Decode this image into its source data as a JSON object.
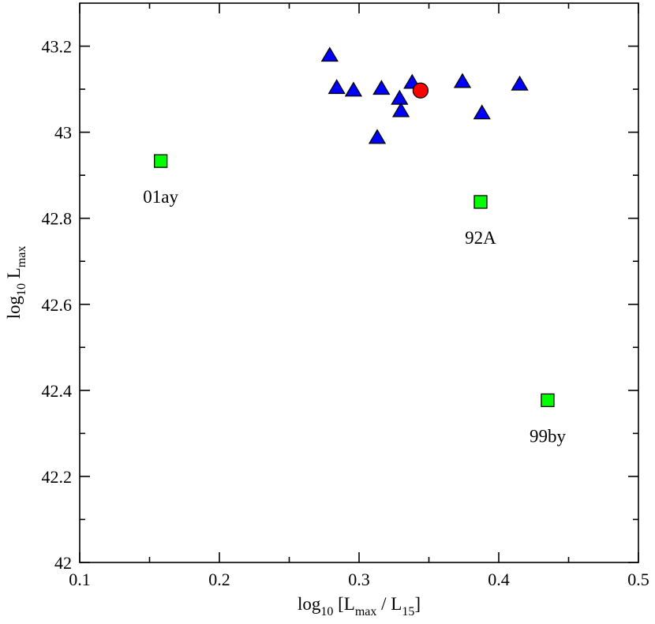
{
  "chart_data": {
    "type": "scatter",
    "title": "",
    "xlabel": {
      "base": "log",
      "base_sub": "10",
      "open": " [L",
      "sub1": "max",
      "mid": " / L",
      "sub2": "15",
      "close": "]"
    },
    "ylabel": {
      "base": "log",
      "base_sub": "10",
      "mid": " L",
      "sub1": "max"
    },
    "xlim": [
      0.1,
      0.5
    ],
    "ylim": [
      42.0,
      43.3
    ],
    "x_ticks": [
      0.1,
      0.2,
      0.3,
      0.4,
      0.5
    ],
    "x_tick_labels": [
      "0.1",
      "0.2",
      "0.3",
      "0.4",
      "0.5"
    ],
    "y_ticks": [
      42.0,
      42.2,
      42.4,
      42.6,
      42.8,
      43.0,
      43.2
    ],
    "y_tick_labels": [
      "42",
      "42.2",
      "42.4",
      "42.6",
      "42.8",
      "43",
      "43.2"
    ],
    "grid": false,
    "series": [
      {
        "marker": "triangle",
        "color": "#0000ff",
        "points": [
          {
            "x": 0.279,
            "y": 43.178
          },
          {
            "x": 0.284,
            "y": 43.103
          },
          {
            "x": 0.296,
            "y": 43.097
          },
          {
            "x": 0.313,
            "y": 42.987
          },
          {
            "x": 0.316,
            "y": 43.101
          },
          {
            "x": 0.329,
            "y": 43.078
          },
          {
            "x": 0.33,
            "y": 43.049
          },
          {
            "x": 0.338,
            "y": 43.115
          },
          {
            "x": 0.374,
            "y": 43.117
          },
          {
            "x": 0.388,
            "y": 43.044
          },
          {
            "x": 0.415,
            "y": 43.111
          }
        ]
      },
      {
        "marker": "circle",
        "color": "#ff0000",
        "points": [
          {
            "x": 0.344,
            "y": 43.097
          }
        ]
      },
      {
        "marker": "square",
        "color": "#00ff00",
        "points": [
          {
            "x": 0.158,
            "y": 42.933,
            "label": "01ay"
          },
          {
            "x": 0.387,
            "y": 42.838,
            "label": "92A"
          },
          {
            "x": 0.435,
            "y": 42.377,
            "label": "99by"
          }
        ]
      }
    ]
  }
}
